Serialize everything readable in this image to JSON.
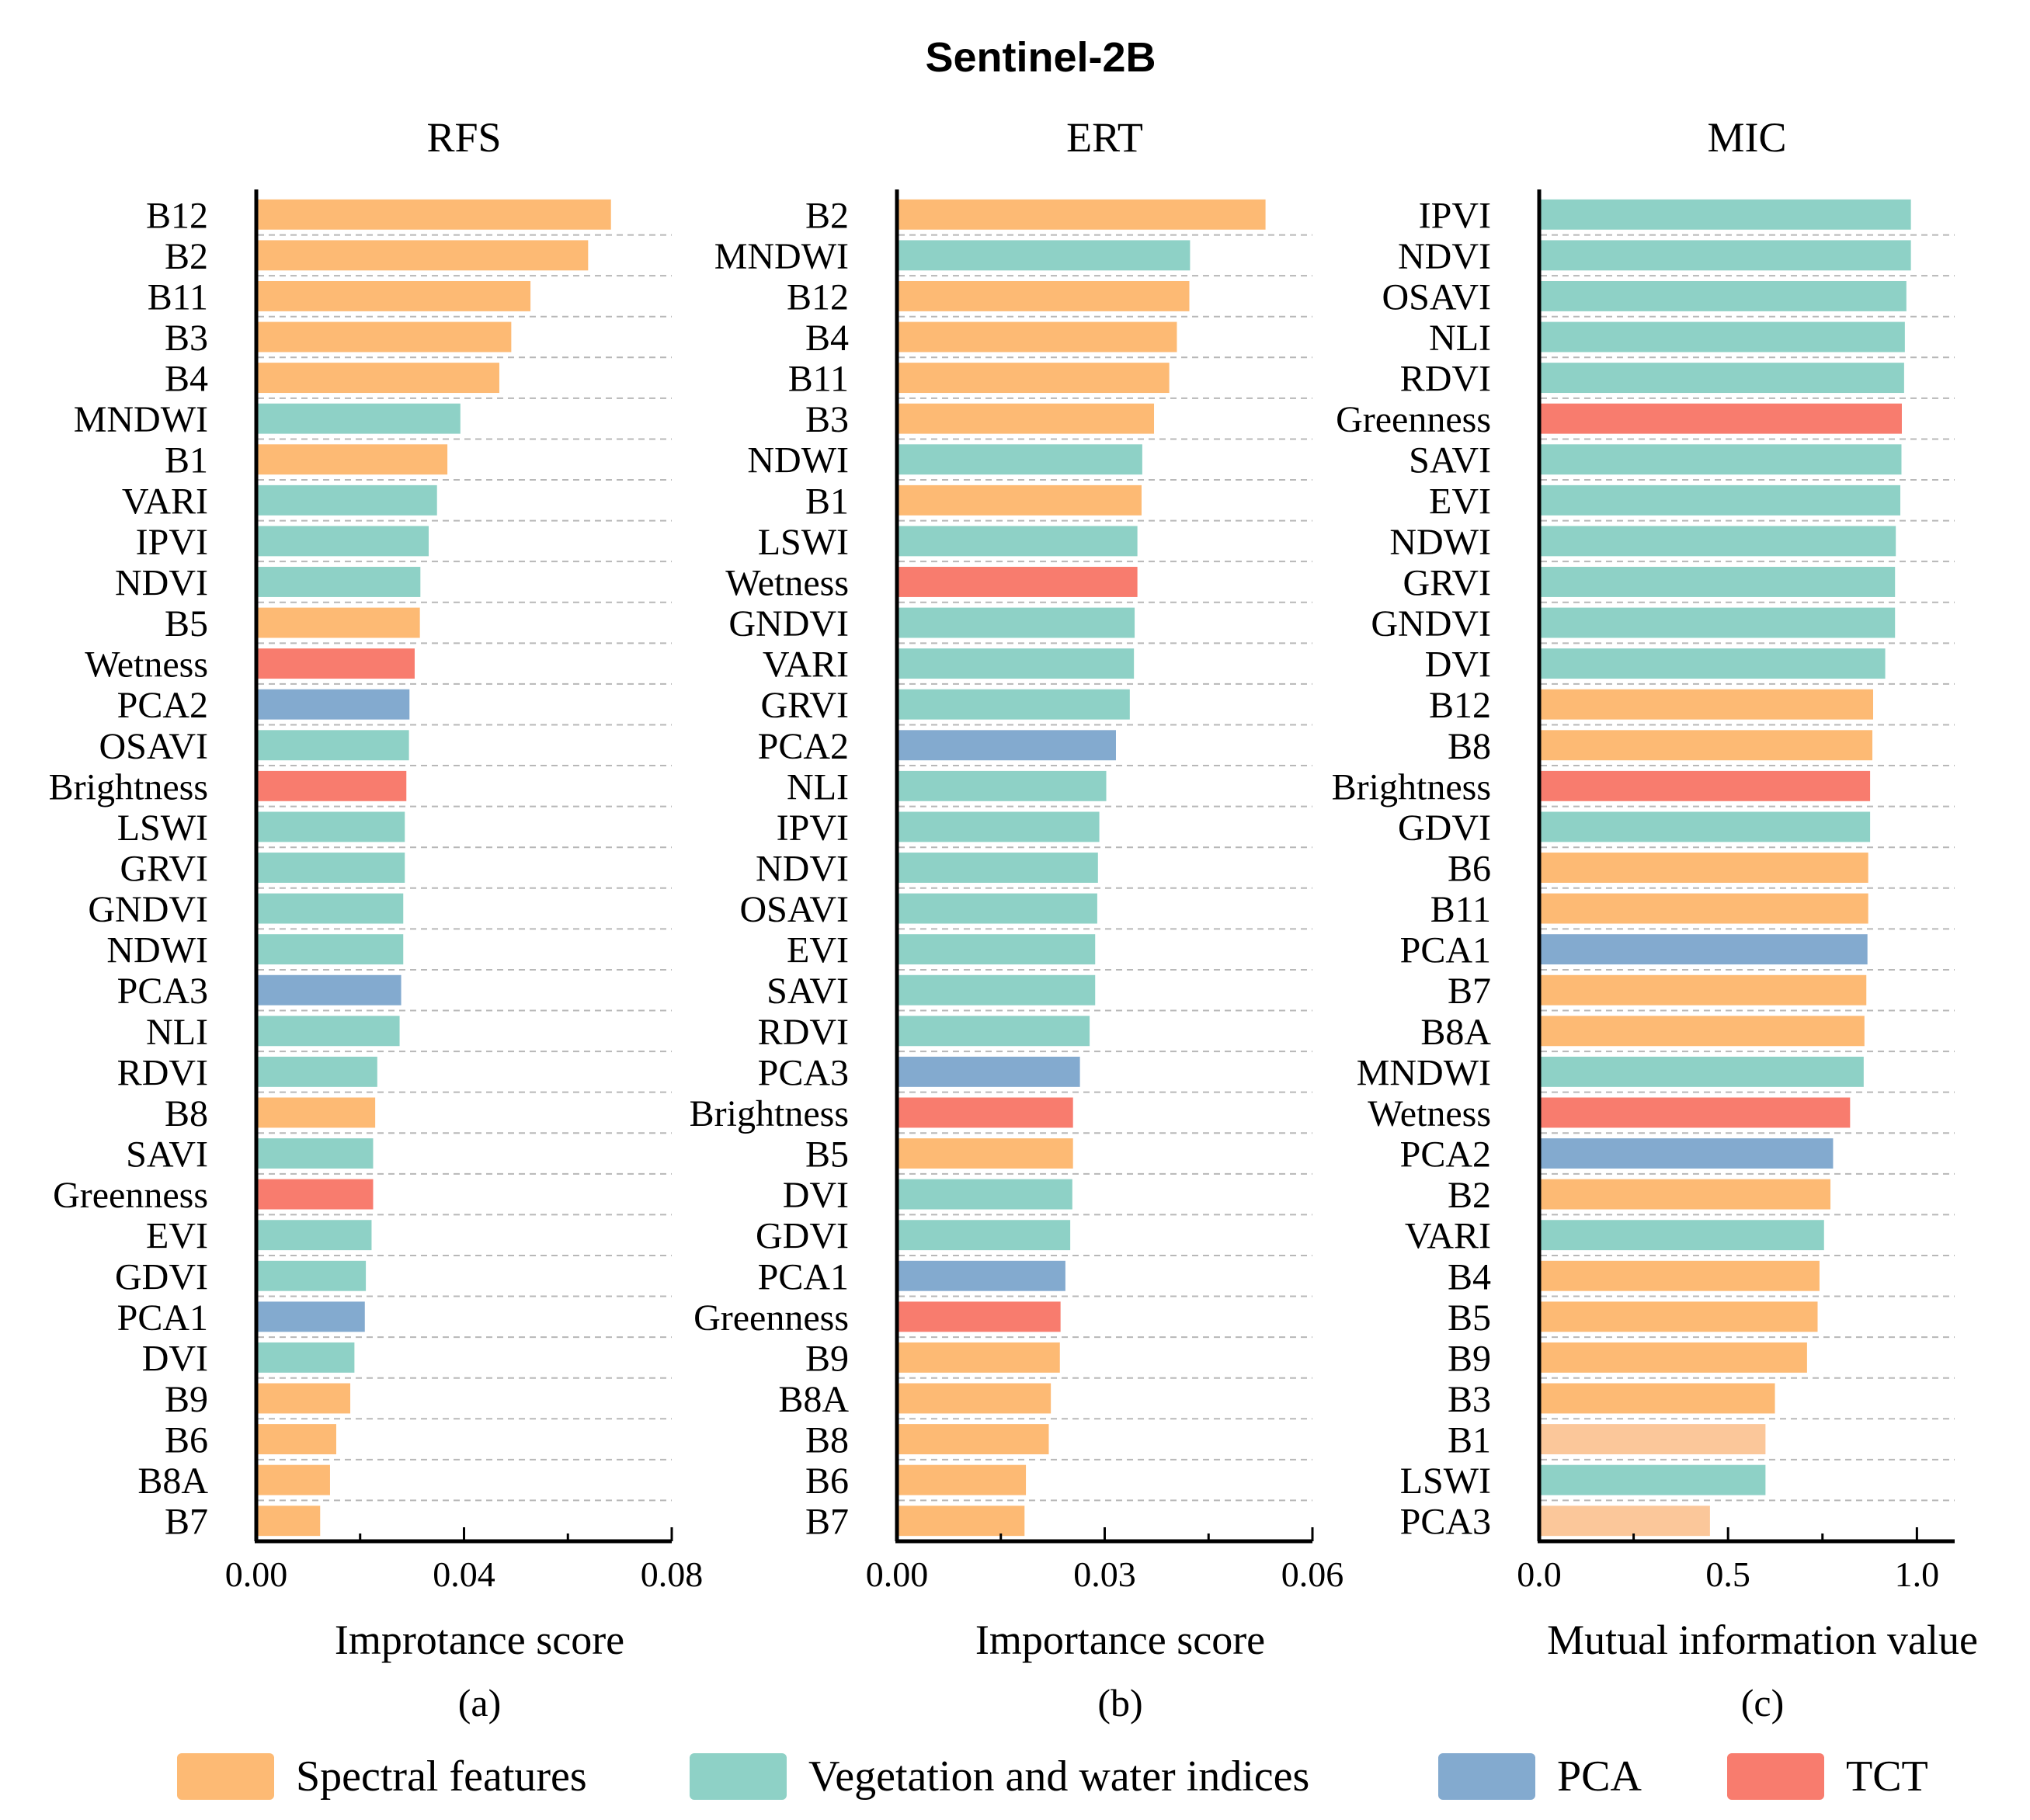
{
  "figure": {
    "title": "Sentinel-2B",
    "colors": {
      "spectral": "#FDBA74",
      "spectral_light": "#FBC79A",
      "vegetation": "#8ED1C6",
      "pca": "#83AACF",
      "tct": "#F87C6E"
    },
    "legend": [
      {
        "key": "spectral",
        "label": "Spectral features"
      },
      {
        "key": "vegetation",
        "label": "Vegetation and water indices"
      },
      {
        "key": "pca",
        "label": "PCA"
      },
      {
        "key": "tct",
        "label": "TCT"
      }
    ]
  },
  "chart_data": [
    {
      "type": "bar",
      "orientation": "horizontal",
      "title": "RFS",
      "xlabel": "Improtance score",
      "caption": "(a)",
      "xlim": [
        0,
        0.08
      ],
      "xticks": [
        "0.00",
        "0.04",
        "0.08"
      ],
      "xtick_values": [
        0,
        0.04,
        0.08
      ],
      "categories": [
        "B12",
        "B2",
        "B11",
        "B3",
        "B4",
        "MNDWI",
        "B1",
        "VARI",
        "IPVI",
        "NDVI",
        "B5",
        "Wetness",
        "PCA2",
        "OSAVI",
        "Brightness",
        "LSWI",
        "GRVI",
        "GNDVI",
        "NDWI",
        "PCA3",
        "NLI",
        "RDVI",
        "B8",
        "SAVI",
        "Greenness",
        "EVI",
        "GDVI",
        "PCA1",
        "DVI",
        "B9",
        "B6",
        "B8A",
        "B7"
      ],
      "values": [
        0.068,
        0.0636,
        0.0525,
        0.0488,
        0.0465,
        0.039,
        0.0365,
        0.0345,
        0.0329,
        0.0313,
        0.0312,
        0.0302,
        0.0292,
        0.0291,
        0.0286,
        0.0283,
        0.0283,
        0.028,
        0.028,
        0.0276,
        0.0273,
        0.023,
        0.0226,
        0.0222,
        0.0222,
        0.0219,
        0.0208,
        0.0206,
        0.0186,
        0.0178,
        0.0151,
        0.0139,
        0.012
      ],
      "groups": [
        "spectral",
        "spectral",
        "spectral",
        "spectral",
        "spectral",
        "vegetation",
        "spectral",
        "vegetation",
        "vegetation",
        "vegetation",
        "spectral",
        "tct",
        "pca",
        "vegetation",
        "tct",
        "vegetation",
        "vegetation",
        "vegetation",
        "vegetation",
        "pca",
        "vegetation",
        "vegetation",
        "spectral",
        "vegetation",
        "tct",
        "vegetation",
        "vegetation",
        "pca",
        "vegetation",
        "spectral",
        "spectral",
        "spectral",
        "spectral"
      ]
    },
    {
      "type": "bar",
      "orientation": "horizontal",
      "title": "ERT",
      "xlabel": "Importance score",
      "caption": "(b)",
      "xlim": [
        0,
        0.06
      ],
      "xticks": [
        "0.00",
        "0.03",
        "0.06"
      ],
      "xtick_values": [
        0,
        0.03,
        0.06
      ],
      "categories": [
        "B2",
        "MNDWI",
        "B12",
        "B4",
        "B11",
        "B3",
        "NDWI",
        "B1",
        "LSWI",
        "Wetness",
        "GNDVI",
        "VARI",
        "GRVI",
        "PCA2",
        "NLI",
        "IPVI",
        "NDVI",
        "OSAVI",
        "EVI",
        "SAVI",
        "RDVI",
        "PCA3",
        "Brightness",
        "B5",
        "DVI",
        "GDVI",
        "PCA1",
        "Greenness",
        "B9",
        "B8A",
        "B8",
        "B6",
        "B7"
      ],
      "values": [
        0.053,
        0.0421,
        0.042,
        0.0402,
        0.0391,
        0.0369,
        0.0352,
        0.0351,
        0.0345,
        0.0345,
        0.0341,
        0.034,
        0.0334,
        0.0314,
        0.03,
        0.029,
        0.0288,
        0.0287,
        0.0284,
        0.0284,
        0.0276,
        0.0262,
        0.0252,
        0.0252,
        0.0251,
        0.0248,
        0.0241,
        0.0234,
        0.0233,
        0.022,
        0.0217,
        0.0184,
        0.0182
      ],
      "groups": [
        "spectral",
        "vegetation",
        "spectral",
        "spectral",
        "spectral",
        "spectral",
        "vegetation",
        "spectral",
        "vegetation",
        "tct",
        "vegetation",
        "vegetation",
        "vegetation",
        "pca",
        "vegetation",
        "vegetation",
        "vegetation",
        "vegetation",
        "vegetation",
        "vegetation",
        "vegetation",
        "pca",
        "tct",
        "spectral",
        "vegetation",
        "vegetation",
        "pca",
        "tct",
        "spectral",
        "spectral",
        "spectral",
        "spectral",
        "spectral"
      ]
    },
    {
      "type": "bar",
      "orientation": "horizontal",
      "title": "MIC",
      "xlabel": "Mutual information value",
      "caption": "(c)",
      "xlim": [
        0,
        1.1
      ],
      "xticks": [
        "0.0",
        "0.5",
        "1.0"
      ],
      "xtick_values": [
        0,
        0.5,
        1.0
      ],
      "categories": [
        "IPVI",
        "NDVI",
        "OSAVI",
        "NLI",
        "RDVI",
        "Greenness",
        "SAVI",
        "EVI",
        "NDWI",
        "GRVI",
        "GNDVI",
        "DVI",
        "B12",
        "B8",
        "Brightness",
        "GDVI",
        "B6",
        "B11",
        "PCA1",
        "B7",
        "B8A",
        "MNDWI",
        "Wetness",
        "PCA2",
        "B2",
        "VARI",
        "B4",
        "B5",
        "B9",
        "B3",
        "B1",
        "LSWI",
        "PCA3"
      ],
      "values": [
        0.98,
        0.98,
        0.968,
        0.964,
        0.962,
        0.956,
        0.955,
        0.952,
        0.94,
        0.938,
        0.938,
        0.912,
        0.88,
        0.878,
        0.872,
        0.872,
        0.867,
        0.867,
        0.865,
        0.862,
        0.857,
        0.855,
        0.819,
        0.774,
        0.767,
        0.75,
        0.738,
        0.733,
        0.705,
        0.62,
        0.595,
        0.595,
        0.448
      ],
      "groups": [
        "vegetation",
        "vegetation",
        "vegetation",
        "vegetation",
        "vegetation",
        "tct",
        "vegetation",
        "vegetation",
        "vegetation",
        "vegetation",
        "vegetation",
        "vegetation",
        "spectral",
        "spectral",
        "tct",
        "vegetation",
        "spectral",
        "spectral",
        "pca",
        "spectral",
        "spectral",
        "vegetation",
        "tct",
        "pca",
        "spectral",
        "vegetation",
        "spectral",
        "spectral",
        "spectral",
        "spectral",
        "spectral_light",
        "vegetation",
        "spectral_light"
      ]
    }
  ]
}
